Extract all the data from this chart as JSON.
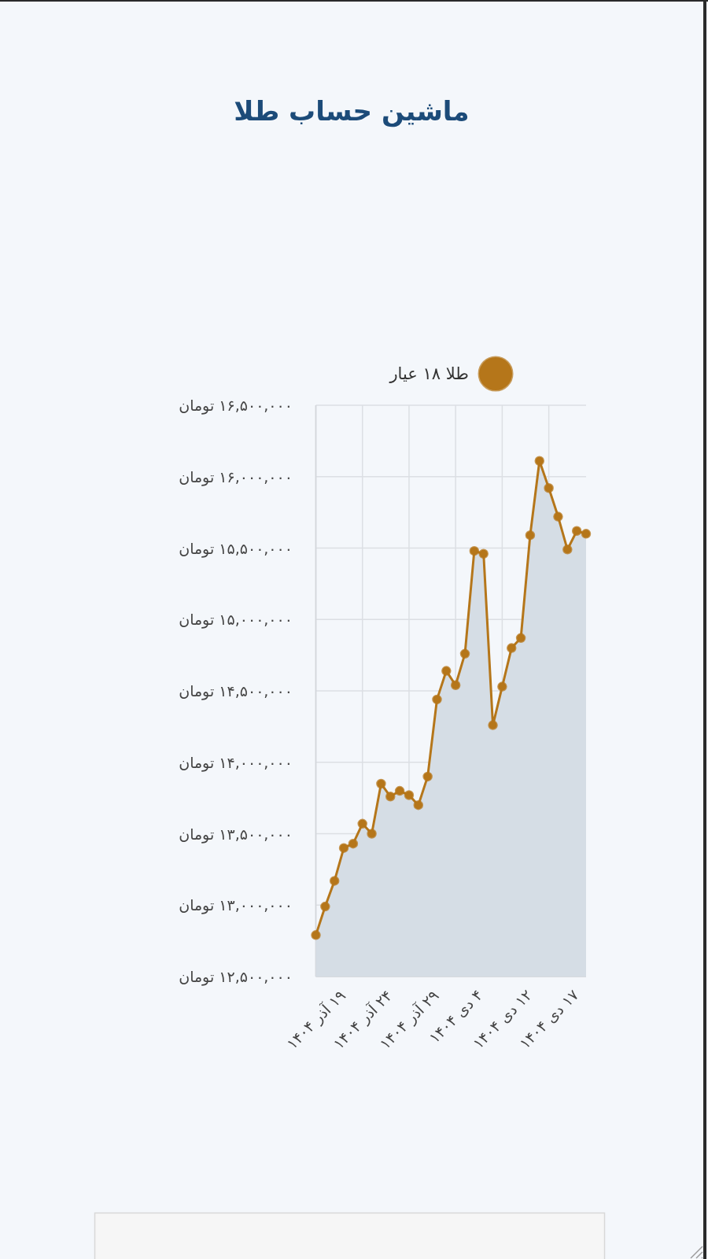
{
  "chart_data": {
    "type": "area",
    "title": "ماشین حساب طلا",
    "categories": [
      "۱۹ آذر ۱۴۰۴",
      null,
      null,
      null,
      null,
      "۲۴ آذر ۱۴۰۴",
      null,
      null,
      null,
      null,
      "۲۹ آذر ۱۴۰۴",
      null,
      null,
      null,
      null,
      "۴ دی ۱۴۰۴",
      null,
      null,
      null,
      null,
      "۱۲ دی ۱۴۰۴",
      null,
      null,
      null,
      null,
      "۱۷ دی ۱۴۰۴",
      null,
      null,
      null,
      null
    ],
    "series": [
      {
        "name": "طلا ۱۸ عیار",
        "color": "#b5761a",
        "values": [
          12790000,
          12990000,
          13170000,
          13400000,
          13430000,
          13570000,
          13500000,
          13850000,
          13760000,
          13800000,
          13770000,
          13700000,
          13900000,
          14440000,
          14640000,
          14540000,
          14760000,
          15480000,
          15460000,
          14260000,
          14530000,
          14800000,
          14870000,
          15590000,
          16110000,
          15920000,
          15720000,
          15490000,
          15620000,
          15600000
        ]
      }
    ],
    "ylim": [
      12500000,
      16500000
    ],
    "yticks": [
      {
        "value": 12500000,
        "label": "۱۲,۵۰۰,۰۰۰ تومان"
      },
      {
        "value": 13000000,
        "label": "۱۳,۰۰۰,۰۰۰ تومان"
      },
      {
        "value": 13500000,
        "label": "۱۳,۵۰۰,۰۰۰ تومان"
      },
      {
        "value": 14000000,
        "label": "۱۴,۰۰۰,۰۰۰ تومان"
      },
      {
        "value": 14500000,
        "label": "۱۴,۵۰۰,۰۰۰ تومان"
      },
      {
        "value": 15000000,
        "label": "۱۵,۰۰۰,۰۰۰ تومان"
      },
      {
        "value": 15500000,
        "label": "۱۵,۵۰۰,۰۰۰ تومان"
      },
      {
        "value": 16000000,
        "label": "۱۶,۰۰۰,۰۰۰ تومان"
      },
      {
        "value": 16500000,
        "label": "۱۶,۵۰۰,۰۰۰ تومان"
      }
    ],
    "grid": true,
    "legend": "top",
    "marker": "circle",
    "line_style": "solid"
  }
}
